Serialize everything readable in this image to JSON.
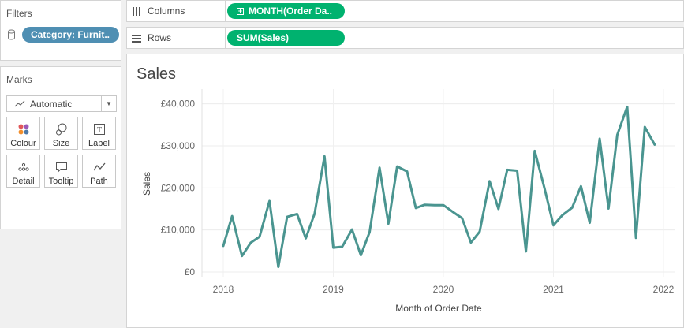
{
  "filters": {
    "title": "Filters",
    "pill_label": "Category: Furnit.."
  },
  "marks": {
    "title": "Marks",
    "type_select": "Automatic",
    "buttons": [
      {
        "label": "Colour",
        "icon": "colour-icon"
      },
      {
        "label": "Size",
        "icon": "size-icon"
      },
      {
        "label": "Label",
        "icon": "label-icon"
      },
      {
        "label": "Detail",
        "icon": "detail-icon"
      },
      {
        "label": "Tooltip",
        "icon": "tooltip-icon"
      },
      {
        "label": "Path",
        "icon": "path-icon"
      }
    ]
  },
  "shelves": {
    "columns_label": "Columns",
    "columns_pill": "MONTH(Order Da..",
    "rows_label": "Rows",
    "rows_pill": "SUM(Sales)"
  },
  "colors": {
    "line": "#4a9590",
    "filter_pill": "#4f8fb3",
    "shelf_pill": "#00b26f"
  },
  "chart_data": {
    "type": "line",
    "title": "Sales",
    "xlabel": "Month of Order Date",
    "ylabel": "Sales",
    "ylim": [
      0,
      42000
    ],
    "xlim": [
      2018,
      2022
    ],
    "x_ticks": [
      "2018",
      "2019",
      "2020",
      "2021",
      "2022"
    ],
    "y_ticks": [
      "£0",
      "£10,000",
      "£20,000",
      "£30,000",
      "£40,000"
    ],
    "y_tick_values": [
      0,
      10000,
      20000,
      30000,
      40000
    ],
    "grid": true,
    "series": [
      {
        "name": "",
        "x": [
          2018.0,
          2018.08,
          2018.17,
          2018.25,
          2018.33,
          2018.42,
          2018.5,
          2018.58,
          2018.67,
          2018.75,
          2018.83,
          2018.92,
          2019.0,
          2019.08,
          2019.17,
          2019.25,
          2019.33,
          2019.42,
          2019.5,
          2019.58,
          2019.67,
          2019.75,
          2019.83,
          2019.92,
          2020.0,
          2020.08,
          2020.17,
          2020.25,
          2020.33,
          2020.42,
          2020.5,
          2020.58,
          2020.67,
          2020.75,
          2020.83,
          2020.92,
          2021.0,
          2021.08,
          2021.17,
          2021.25,
          2021.33,
          2021.42,
          2021.5,
          2021.58,
          2021.67,
          2021.75,
          2021.83,
          2021.92
        ],
        "y": [
          6200,
          13300,
          3800,
          7000,
          8400,
          16900,
          1200,
          13100,
          13800,
          8000,
          13900,
          27500,
          5800,
          6000,
          10100,
          4000,
          9500,
          24800,
          11500,
          25100,
          23900,
          15200,
          16000,
          15900,
          15900,
          14400,
          12800,
          7000,
          9600,
          21600,
          15000,
          24300,
          24100,
          4900,
          28800,
          19800,
          11100,
          13500,
          15300,
          20400,
          11700,
          31700,
          15100,
          32600,
          39300,
          8100,
          34500,
          30300
        ]
      }
    ]
  }
}
